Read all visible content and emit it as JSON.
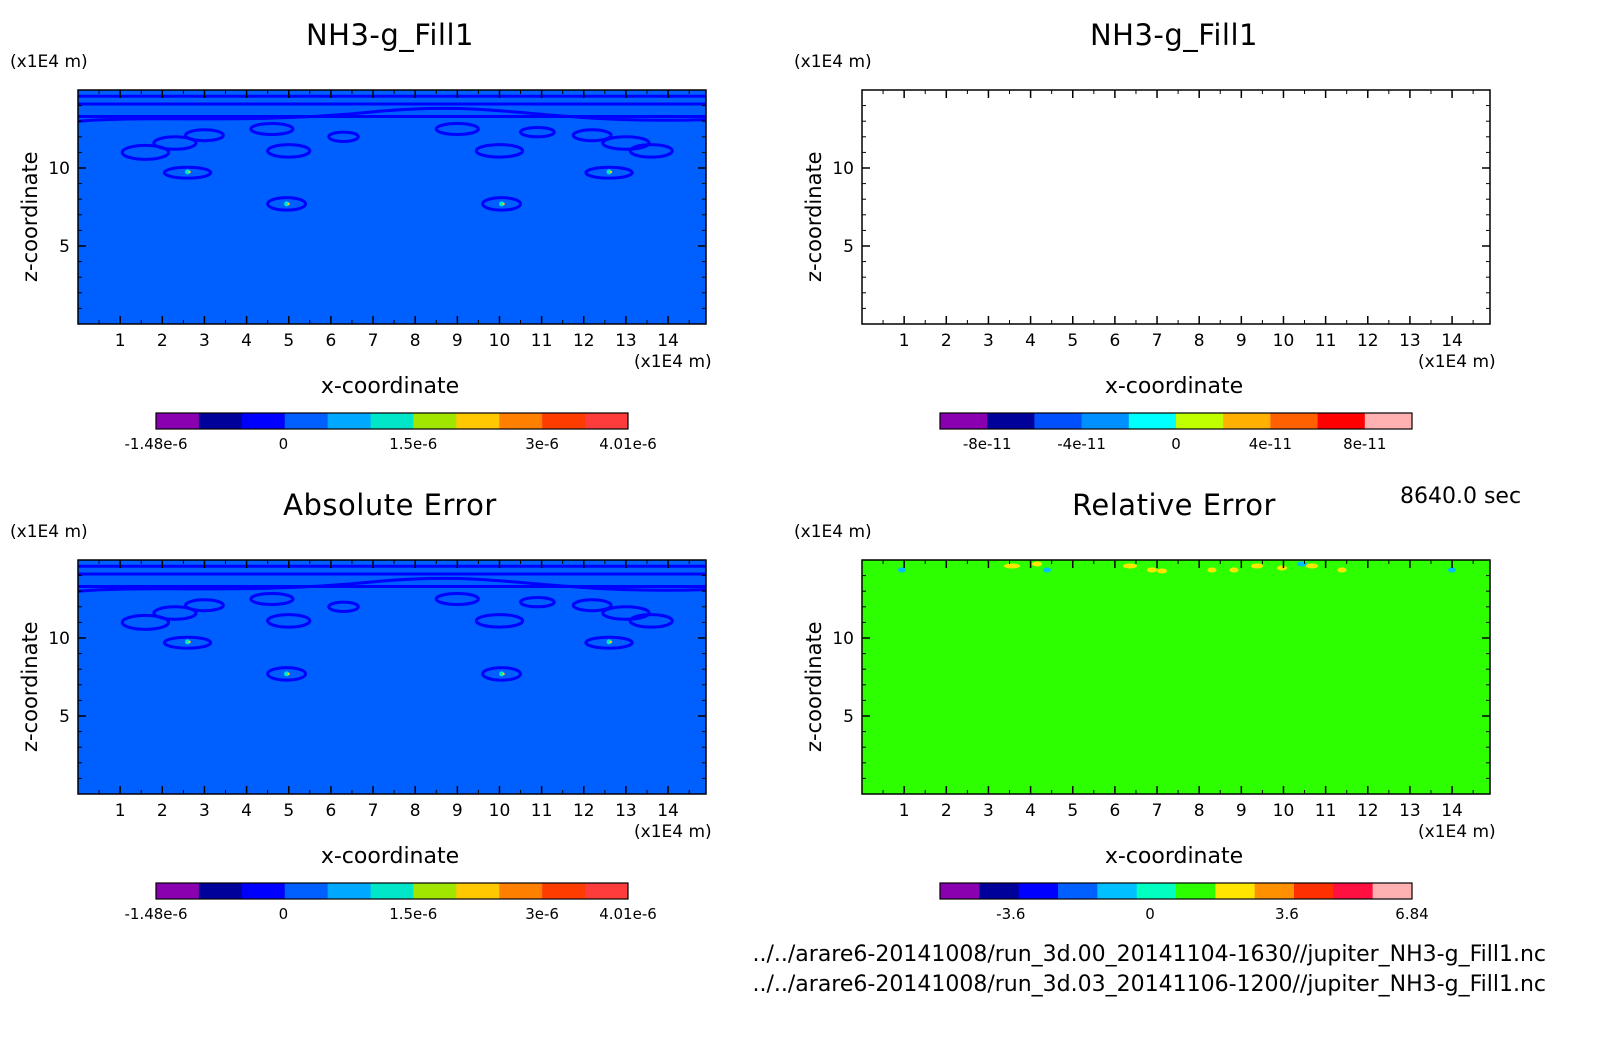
{
  "time_label": "8640.0 sec",
  "files": [
    "../../arare6-20141008/run_3d.00_20141104-1630//jupiter_NH3-g_Fill1.nc",
    "../../arare6-20141008/run_3d.03_20141106-1200//jupiter_NH3-g_Fill1.nc"
  ],
  "chart_data": [
    {
      "type": "heatmap",
      "title": "NH3-g_Fill1",
      "xlabel": "x-coordinate",
      "ylabel": "z-coordinate",
      "x_unit": "(x1E4 m)",
      "y_unit": "(x1E4 m)",
      "xlim": [
        0,
        14.9
      ],
      "ylim": [
        0,
        15
      ],
      "xticks": [
        "1",
        "2",
        "3",
        "4",
        "5",
        "6",
        "7",
        "8",
        "9",
        "10",
        "11",
        "12",
        "13",
        "14"
      ],
      "yticks": [
        "5",
        "10"
      ],
      "field": "contour",
      "background": "#0060ff",
      "colorbar": {
        "colors": [
          "#8a00b0",
          "#00009a",
          "#0000ff",
          "#0060ff",
          "#00a8ff",
          "#00e6c8",
          "#a0e600",
          "#ffc800",
          "#ff8000",
          "#ff3c00",
          "#ff3c3c"
        ],
        "tick_labels": [
          {
            "label": "-1.48e-6",
            "pos": 0
          },
          {
            "label": "0",
            "pos": 0.27
          },
          {
            "label": "1.5e-6",
            "pos": 0.545
          },
          {
            "label": "3e-6",
            "pos": 0.818
          },
          {
            "label": "4.01e-6",
            "pos": 1
          }
        ]
      }
    },
    {
      "type": "heatmap",
      "title": "NH3-g_Fill1",
      "xlabel": "x-coordinate",
      "ylabel": "z-coordinate",
      "x_unit": "(x1E4 m)",
      "y_unit": "(x1E4 m)",
      "xlim": [
        0,
        14.9
      ],
      "ylim": [
        0,
        15
      ],
      "xticks": [
        "1",
        "2",
        "3",
        "4",
        "5",
        "6",
        "7",
        "8",
        "9",
        "10",
        "11",
        "12",
        "13",
        "14"
      ],
      "yticks": [
        "5",
        "10"
      ],
      "field": "empty",
      "background": "#ffffff",
      "colorbar": {
        "colors": [
          "#8a00b0",
          "#00009a",
          "#0050ff",
          "#0090ff",
          "#00ffff",
          "#c0ff00",
          "#ffb000",
          "#ff6000",
          "#ff0000",
          "#ffb0b0"
        ],
        "tick_labels": [
          {
            "label": "-8e-11",
            "pos": 0.1
          },
          {
            "label": "-4e-11",
            "pos": 0.3
          },
          {
            "label": "0",
            "pos": 0.5
          },
          {
            "label": "4e-11",
            "pos": 0.7
          },
          {
            "label": "8e-11",
            "pos": 0.9
          }
        ]
      }
    },
    {
      "type": "heatmap",
      "title": "Absolute Error",
      "xlabel": "x-coordinate",
      "ylabel": "z-coordinate",
      "x_unit": "(x1E4 m)",
      "y_unit": "(x1E4 m)",
      "xlim": [
        0,
        14.9
      ],
      "ylim": [
        0,
        15
      ],
      "xticks": [
        "1",
        "2",
        "3",
        "4",
        "5",
        "6",
        "7",
        "8",
        "9",
        "10",
        "11",
        "12",
        "13",
        "14"
      ],
      "yticks": [
        "5",
        "10"
      ],
      "field": "contour",
      "background": "#0060ff",
      "colorbar": {
        "colors": [
          "#8a00b0",
          "#00009a",
          "#0000ff",
          "#0060ff",
          "#00a8ff",
          "#00e6c8",
          "#a0e600",
          "#ffc800",
          "#ff8000",
          "#ff3c00",
          "#ff3c3c"
        ],
        "tick_labels": [
          {
            "label": "-1.48e-6",
            "pos": 0
          },
          {
            "label": "0",
            "pos": 0.27
          },
          {
            "label": "1.5e-6",
            "pos": 0.545
          },
          {
            "label": "3e-6",
            "pos": 0.818
          },
          {
            "label": "4.01e-6",
            "pos": 1
          }
        ]
      }
    },
    {
      "type": "heatmap",
      "title": "Relative Error",
      "xlabel": "x-coordinate",
      "ylabel": "z-coordinate",
      "x_unit": "(x1E4 m)",
      "y_unit": "(x1E4 m)",
      "xlim": [
        0,
        14.9
      ],
      "ylim": [
        0,
        15
      ],
      "xticks": [
        "1",
        "2",
        "3",
        "4",
        "5",
        "6",
        "7",
        "8",
        "9",
        "10",
        "11",
        "12",
        "13",
        "14"
      ],
      "yticks": [
        "5",
        "10"
      ],
      "field": "relative",
      "background": "#2dff00",
      "colorbar": {
        "colors": [
          "#8a00b0",
          "#00009a",
          "#0000ff",
          "#0060ff",
          "#00c0ff",
          "#00ffc0",
          "#2dff00",
          "#ffe600",
          "#ff9000",
          "#ff3000",
          "#ff1040",
          "#ffb0b0"
        ],
        "tick_labels": [
          {
            "label": "-3.6",
            "pos": 0.15
          },
          {
            "label": "0",
            "pos": 0.445
          },
          {
            "label": "3.6",
            "pos": 0.735
          },
          {
            "label": "6.84",
            "pos": 1
          }
        ]
      }
    }
  ]
}
